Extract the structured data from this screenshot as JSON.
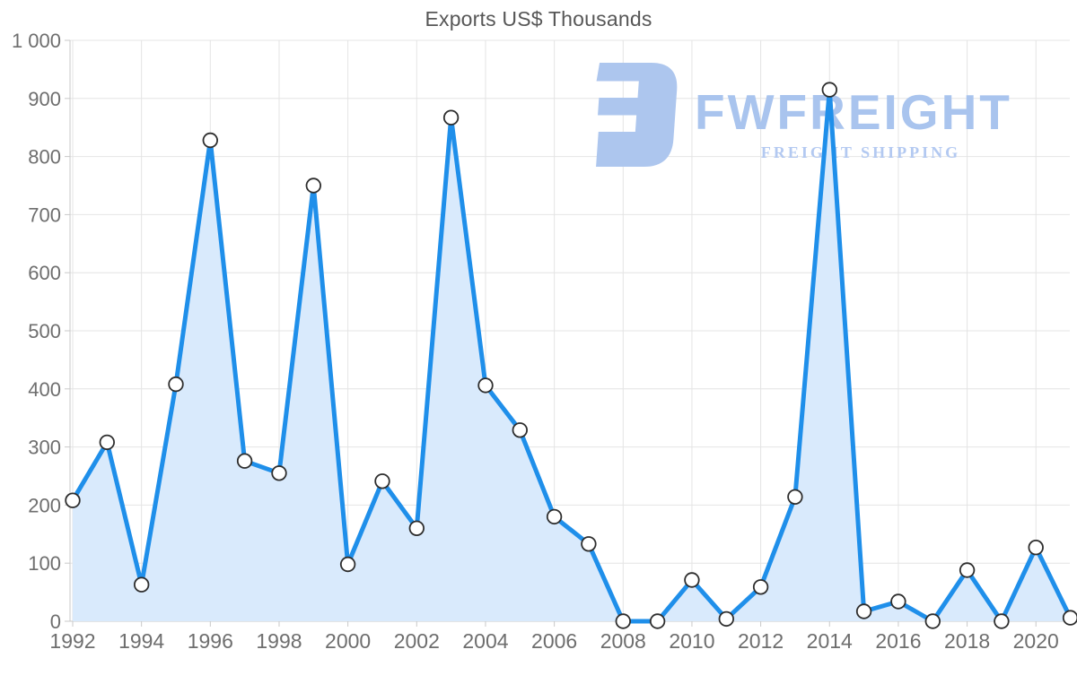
{
  "watermark": {
    "brand": "FWFREIGHT",
    "tagline": "FREIGHT SHIPPING",
    "logo_color": "#adc6ee",
    "brand_color": "#a9c4ee",
    "tagline_color": "#b3c9f1"
  },
  "chart_data": {
    "type": "area",
    "title": "Exports US$ Thousands",
    "series_name": "Exports",
    "x": [
      1992,
      1993,
      1994,
      1995,
      1996,
      1997,
      1998,
      1999,
      2000,
      2001,
      2002,
      2003,
      2004,
      2005,
      2006,
      2007,
      2008,
      2009,
      2010,
      2011,
      2012,
      2013,
      2014,
      2015,
      2016,
      2017,
      2018,
      2019,
      2020,
      2021
    ],
    "values": [
      208,
      308,
      63,
      408,
      828,
      276,
      255,
      750,
      98,
      241,
      160,
      867,
      406,
      329,
      180,
      133,
      0,
      0,
      71,
      4,
      59,
      214,
      915,
      17,
      34,
      0,
      88,
      0,
      127,
      6
    ],
    "xlabel": "",
    "ylabel": "",
    "ylim": [
      0,
      1000
    ],
    "ytick_step": 100,
    "ytick_labels": [
      "0",
      "100",
      "200",
      "300",
      "400",
      "500",
      "600",
      "700",
      "800",
      "900",
      "1 000"
    ],
    "xtick_years": [
      1992,
      1994,
      1996,
      1998,
      2000,
      2002,
      2004,
      2006,
      2008,
      2010,
      2012,
      2014,
      2016,
      2018,
      2020
    ],
    "xtick_labels": [
      "1992",
      "1994",
      "1996",
      "1998",
      "2000",
      "2002",
      "2004",
      "2006",
      "2008",
      "2010",
      "2012",
      "2014",
      "2016",
      "2018",
      "2020"
    ],
    "grid": true,
    "legend_position": "none",
    "colors": {
      "line": "#1f8fea",
      "fill": "#d9eafc",
      "marker_fill": "#ffffff",
      "marker_stroke": "#2e2e2e",
      "grid": "#e4e4e4",
      "axis": "#c9c9c9",
      "tick_text": "#6e6e6e",
      "title_text": "#575757"
    }
  }
}
